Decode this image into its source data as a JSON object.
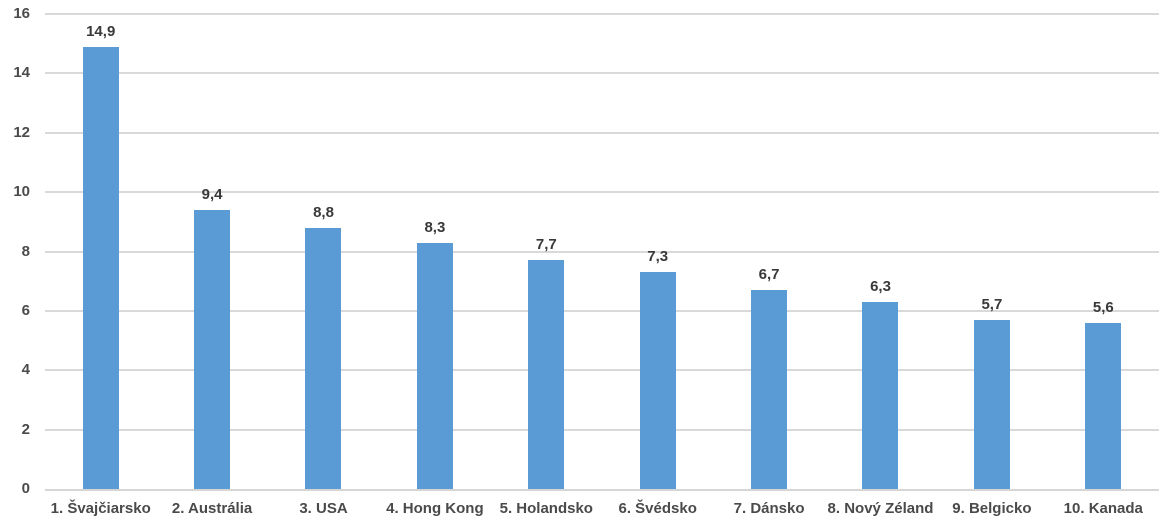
{
  "chart_data": {
    "type": "bar",
    "title": "",
    "xlabel": "",
    "ylabel": "",
    "categories": [
      "1. Švajčiarsko",
      "2. Austrália",
      "3. USA",
      "4. Hong Kong",
      "5. Holandsko",
      "6. Švédsko",
      "7. Dánsko",
      "8. Nový Zéland",
      "9. Belgicko",
      "10. Kanada"
    ],
    "values": [
      14.9,
      9.4,
      8.8,
      8.3,
      7.7,
      7.3,
      6.7,
      6.3,
      5.7,
      5.6
    ],
    "value_labels": [
      "14,9",
      "9,4",
      "8,8",
      "8,3",
      "7,7",
      "7,3",
      "6,7",
      "6,3",
      "5,7",
      "5,6"
    ],
    "y_ticks": [
      0,
      2,
      4,
      6,
      8,
      10,
      12,
      14,
      16
    ],
    "y_tick_labels": [
      "0",
      "2",
      "4",
      "6",
      "8",
      "10",
      "12",
      "14",
      "16"
    ],
    "ylim": [
      0,
      16
    ],
    "grid": true,
    "legend": "none",
    "colors": {
      "bar": "#5b9bd5",
      "gridline": "#d9d9d9",
      "axis_label": "#4a4a4a",
      "value_label": "#393939",
      "background": "#ffffff"
    }
  }
}
